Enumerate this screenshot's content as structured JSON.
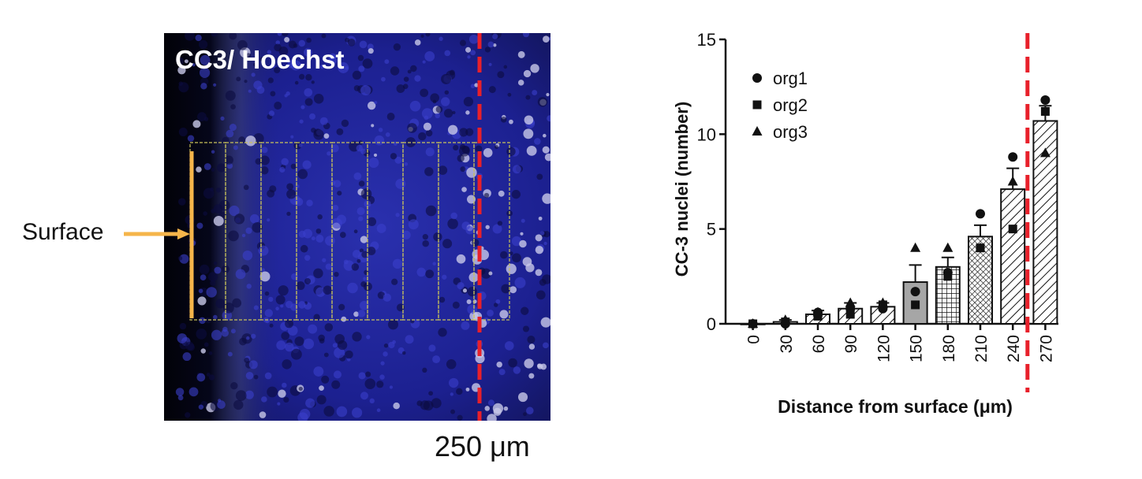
{
  "micrograph": {
    "stain_label": "CC3/ Hoechst",
    "surface_label": "Surface",
    "scale_label": "250 μm",
    "colors": {
      "nuclei": "#2f34b8",
      "background": "#050518",
      "roi_grid": "#c9c25a",
      "surface_marker": "#f5b54a",
      "threshold_line": "#e8202a"
    }
  },
  "chart_data": {
    "type": "bar",
    "categories": [
      "0",
      "30",
      "60",
      "90",
      "120",
      "150",
      "180",
      "210",
      "240",
      "270"
    ],
    "values": [
      0,
      0.1,
      0.5,
      0.8,
      0.9,
      2.2,
      3.0,
      4.6,
      7.1,
      10.7
    ],
    "errors": [
      0,
      0.1,
      0.2,
      0.3,
      0.2,
      0.9,
      0.5,
      0.6,
      1.1,
      0.8
    ],
    "ylim": [
      0,
      15
    ],
    "yticks": [
      "0",
      "5",
      "10",
      "15"
    ],
    "ylabel": "CC-3 nuclei (number)",
    "xlabel": "Distance from surface (μm)",
    "legend": {
      "position": "top-left",
      "entries": [
        {
          "name": "org1",
          "marker": "circle"
        },
        {
          "name": "org2",
          "marker": "square"
        },
        {
          "name": "org3",
          "marker": "triangle"
        }
      ]
    },
    "points": {
      "org1": [
        0,
        0,
        0.6,
        0.8,
        0.8,
        1.7,
        2.7,
        5.8,
        8.8,
        11.8
      ],
      "org2": [
        0,
        0.1,
        0.4,
        0.5,
        1.0,
        1.0,
        2.5,
        4.0,
        5.0,
        11.2
      ],
      "org3": [
        0,
        0.2,
        0.6,
        1.1,
        1.1,
        4.0,
        4.0,
        4.0,
        7.5,
        9.0
      ]
    },
    "fills": [
      "white",
      "white",
      "diag",
      "diag",
      "diag",
      "gray",
      "grid",
      "dense",
      "diag",
      "diag"
    ],
    "threshold_line_after": "240"
  }
}
